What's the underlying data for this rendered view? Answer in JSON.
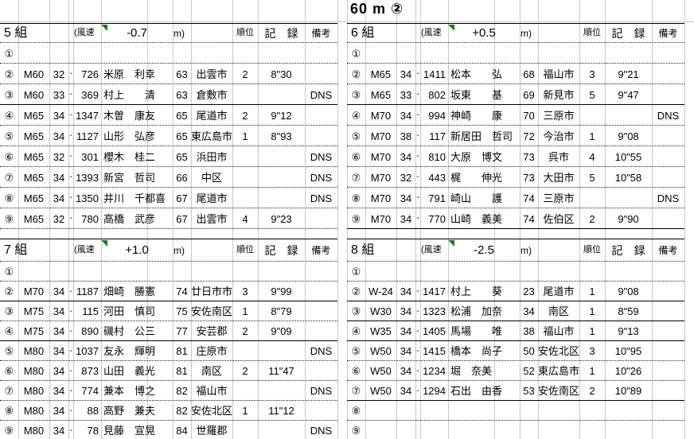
{
  "title": "60 m ②",
  "labels": {
    "wind_prefix": "(風速",
    "wind_unit": "m)",
    "rank": "順位",
    "record": "記　録",
    "note": "備考"
  },
  "groups": [
    {
      "heat": "5",
      "label": "5 組",
      "wind": "-0.7",
      "rows": [
        {
          "no": "①",
          "cls": "",
          "pref": "",
          "dash": "",
          "bib": "",
          "name": "",
          "age": "",
          "city": "",
          "rank": "",
          "record": "",
          "note": "",
          "sep": "d"
        },
        {
          "no": "②",
          "cls": "M60",
          "pref": "32",
          "dash": "-",
          "bib": "726",
          "name": "米原　利幸",
          "age": "63",
          "city": "出雲市",
          "rank": "2",
          "record": "8\"30",
          "note": "",
          "sep": "d"
        },
        {
          "no": "③",
          "cls": "M60",
          "pref": "33",
          "dash": "-",
          "bib": "369",
          "name": "村上　　清",
          "age": "63",
          "city": "倉敷市",
          "rank": "",
          "record": "",
          "note": "DNS",
          "sep": "d"
        },
        {
          "no": "④",
          "cls": "M65",
          "pref": "34",
          "dash": "-",
          "bib": "1347",
          "name": "木曽　康友",
          "age": "65",
          "city": "尾道市",
          "rank": "2",
          "record": "9\"12",
          "note": "",
          "sep": "s"
        },
        {
          "no": "⑤",
          "cls": "M65",
          "pref": "34",
          "dash": "-",
          "bib": "1127",
          "name": "山形　弘彦",
          "age": "65",
          "city": "東広島市",
          "rank": "1",
          "record": "8\"93",
          "note": "",
          "sep": "d"
        },
        {
          "no": "⑥",
          "cls": "M65",
          "pref": "32",
          "dash": "-",
          "bib": "301",
          "name": "櫻木　桂二",
          "age": "65",
          "city": "浜田市",
          "rank": "",
          "record": "",
          "note": "DNS",
          "sep": "d"
        },
        {
          "no": "⑦",
          "cls": "M65",
          "pref": "34",
          "dash": "-",
          "bib": "1393",
          "name": "新宮　哲司",
          "age": "66",
          "city": "中区",
          "rank": "",
          "record": "",
          "note": "DNS",
          "sep": "d"
        },
        {
          "no": "⑧",
          "cls": "M65",
          "pref": "34",
          "dash": "-",
          "bib": "1350",
          "name": "井川　千都喜",
          "age": "67",
          "city": "尾道市",
          "rank": "",
          "record": "",
          "note": "DNS",
          "sep": "d"
        },
        {
          "no": "⑨",
          "cls": "M65",
          "pref": "32",
          "dash": "-",
          "bib": "780",
          "name": "高橋　武彦",
          "age": "67",
          "city": "出雲市",
          "rank": "4",
          "record": "9\"23",
          "note": "",
          "sep": "d"
        }
      ]
    },
    {
      "heat": "6",
      "label": "6 組",
      "wind": "+0.5",
      "rows": [
        {
          "no": "①",
          "cls": "",
          "pref": "",
          "dash": "",
          "bib": "",
          "name": "",
          "age": "",
          "city": "",
          "rank": "",
          "record": "",
          "note": "",
          "sep": "d"
        },
        {
          "no": "②",
          "cls": "M65",
          "pref": "34",
          "dash": "-",
          "bib": "1411",
          "name": "松本　　弘",
          "age": "68",
          "city": "福山市",
          "rank": "3",
          "record": "9\"21",
          "note": "",
          "sep": "d"
        },
        {
          "no": "③",
          "cls": "M65",
          "pref": "33",
          "dash": "-",
          "bib": "802",
          "name": "坂東　　基",
          "age": "69",
          "city": "新見市",
          "rank": "5",
          "record": "9\"47",
          "note": "",
          "sep": "d"
        },
        {
          "no": "④",
          "cls": "M70",
          "pref": "34",
          "dash": "-",
          "bib": "994",
          "name": "神崎　　康",
          "age": "70",
          "city": "三原市",
          "rank": "",
          "record": "",
          "note": "DNS",
          "sep": "s"
        },
        {
          "no": "⑤",
          "cls": "M70",
          "pref": "38",
          "dash": "-",
          "bib": "117",
          "name": "新居田　哲司",
          "age": "72",
          "city": "今治市",
          "rank": "1",
          "record": "9\"08",
          "note": "",
          "sep": "d"
        },
        {
          "no": "⑥",
          "cls": "M70",
          "pref": "34",
          "dash": "-",
          "bib": "810",
          "name": "大原　博文",
          "age": "73",
          "city": "呉市",
          "rank": "4",
          "record": "10\"55",
          "note": "",
          "sep": "d"
        },
        {
          "no": "⑦",
          "cls": "M70",
          "pref": "32",
          "dash": "-",
          "bib": "443",
          "name": "梶　　伸光",
          "age": "73",
          "city": "大田市",
          "rank": "5",
          "record": "10\"58",
          "note": "",
          "sep": "d"
        },
        {
          "no": "⑧",
          "cls": "M70",
          "pref": "34",
          "dash": "-",
          "bib": "791",
          "name": "崎山　　護",
          "age": "74",
          "city": "三原市",
          "rank": "",
          "record": "",
          "note": "DNS",
          "sep": "d"
        },
        {
          "no": "⑨",
          "cls": "M70",
          "pref": "34",
          "dash": "-",
          "bib": "770",
          "name": "山崎　義美",
          "age": "74",
          "city": "佐伯区",
          "rank": "2",
          "record": "9\"90",
          "note": "",
          "sep": "d"
        }
      ]
    },
    {
      "heat": "7",
      "label": "7 組",
      "wind": "+1.0",
      "rows": [
        {
          "no": "①",
          "cls": "",
          "pref": "",
          "dash": "",
          "bib": "",
          "name": "",
          "age": "",
          "city": "",
          "rank": "",
          "record": "",
          "note": "",
          "sep": "d"
        },
        {
          "no": "②",
          "cls": "M70",
          "pref": "34",
          "dash": "-",
          "bib": "1187",
          "name": "畑崎　勝憲",
          "age": "74",
          "city": "廿日市市",
          "rank": "3",
          "record": "9\"99",
          "note": "",
          "sep": "d"
        },
        {
          "no": "③",
          "cls": "M75",
          "pref": "34",
          "dash": "-",
          "bib": "115",
          "name": "河田　慎司",
          "age": "75",
          "city": "安佐南区",
          "rank": "1",
          "record": "8\"79",
          "note": "",
          "sep": "s"
        },
        {
          "no": "④",
          "cls": "M75",
          "pref": "34",
          "dash": "-",
          "bib": "890",
          "name": "磯村　公三",
          "age": "77",
          "city": "安芸郡",
          "rank": "2",
          "record": "9\"09",
          "note": "",
          "sep": "d"
        },
        {
          "no": "⑤",
          "cls": "M80",
          "pref": "34",
          "dash": "-",
          "bib": "1037",
          "name": "友永　輝明",
          "age": "81",
          "city": "庄原市",
          "rank": "",
          "record": "",
          "note": "DNS",
          "sep": "s"
        },
        {
          "no": "⑥",
          "cls": "M80",
          "pref": "34",
          "dash": "-",
          "bib": "873",
          "name": "山田　義光",
          "age": "81",
          "city": "南区",
          "rank": "2",
          "record": "11\"47",
          "note": "",
          "sep": "d"
        },
        {
          "no": "⑦",
          "cls": "M80",
          "pref": "34",
          "dash": "-",
          "bib": "774",
          "name": "兼本　博之",
          "age": "82",
          "city": "福山市",
          "rank": "",
          "record": "",
          "note": "DNS",
          "sep": "d"
        },
        {
          "no": "⑧",
          "cls": "M80",
          "pref": "34",
          "dash": "-",
          "bib": "88",
          "name": "高野　兼夫",
          "age": "82",
          "city": "安佐北区",
          "rank": "1",
          "record": "11\"12",
          "note": "",
          "sep": "d"
        },
        {
          "no": "⑨",
          "cls": "M80",
          "pref": "34",
          "dash": "-",
          "bib": "78",
          "name": "見藤　宣晃",
          "age": "84",
          "city": "世羅郡",
          "rank": "",
          "record": "",
          "note": "DNS",
          "sep": "d"
        }
      ]
    },
    {
      "heat": "8",
      "label": "8 組",
      "wind": "-2.5",
      "rows": [
        {
          "no": "①",
          "cls": "",
          "pref": "",
          "dash": "",
          "bib": "",
          "name": "",
          "age": "",
          "city": "",
          "rank": "",
          "record": "",
          "note": "",
          "sep": "d"
        },
        {
          "no": "②",
          "cls": "W-24",
          "pref": "34",
          "dash": "-",
          "bib": "1417",
          "name": "村上　　葵",
          "age": "23",
          "city": "尾道市",
          "rank": "1",
          "record": "9\"08",
          "note": "",
          "sep": "d"
        },
        {
          "no": "③",
          "cls": "W30",
          "pref": "34",
          "dash": "-",
          "bib": "1323",
          "name": "松浦　加奈",
          "age": "34",
          "city": "南区",
          "rank": "1",
          "record": "8\"59",
          "note": "",
          "sep": "s"
        },
        {
          "no": "④",
          "cls": "W35",
          "pref": "34",
          "dash": "-",
          "bib": "1405",
          "name": "馬場　　唯",
          "age": "38",
          "city": "福山市",
          "rank": "1",
          "record": "9\"13",
          "note": "",
          "sep": "s"
        },
        {
          "no": "⑤",
          "cls": "W50",
          "pref": "34",
          "dash": "-",
          "bib": "1415",
          "name": "橋本　尚子",
          "age": "50",
          "city": "安佐北区",
          "rank": "3",
          "record": "10\"95",
          "note": "",
          "sep": "s"
        },
        {
          "no": "⑥",
          "cls": "W50",
          "pref": "34",
          "dash": "-",
          "bib": "1234",
          "name": "堀　奈美",
          "age": "52",
          "city": "東広島市",
          "rank": "1",
          "record": "10\"26",
          "note": "",
          "sep": "d"
        },
        {
          "no": "⑦",
          "cls": "W50",
          "pref": "34",
          "dash": "-",
          "bib": "1294",
          "name": "石出　由香",
          "age": "53",
          "city": "安佐南区",
          "rank": "2",
          "record": "10\"89",
          "note": "",
          "sep": "d"
        },
        {
          "no": "⑧",
          "cls": "",
          "pref": "",
          "dash": "",
          "bib": "",
          "name": "",
          "age": "",
          "city": "",
          "rank": "",
          "record": "",
          "note": "",
          "sep": "s"
        },
        {
          "no": "⑨",
          "cls": "",
          "pref": "",
          "dash": "",
          "bib": "",
          "name": "",
          "age": "",
          "city": "",
          "rank": "",
          "record": "",
          "note": "",
          "sep": "d"
        }
      ]
    }
  ]
}
